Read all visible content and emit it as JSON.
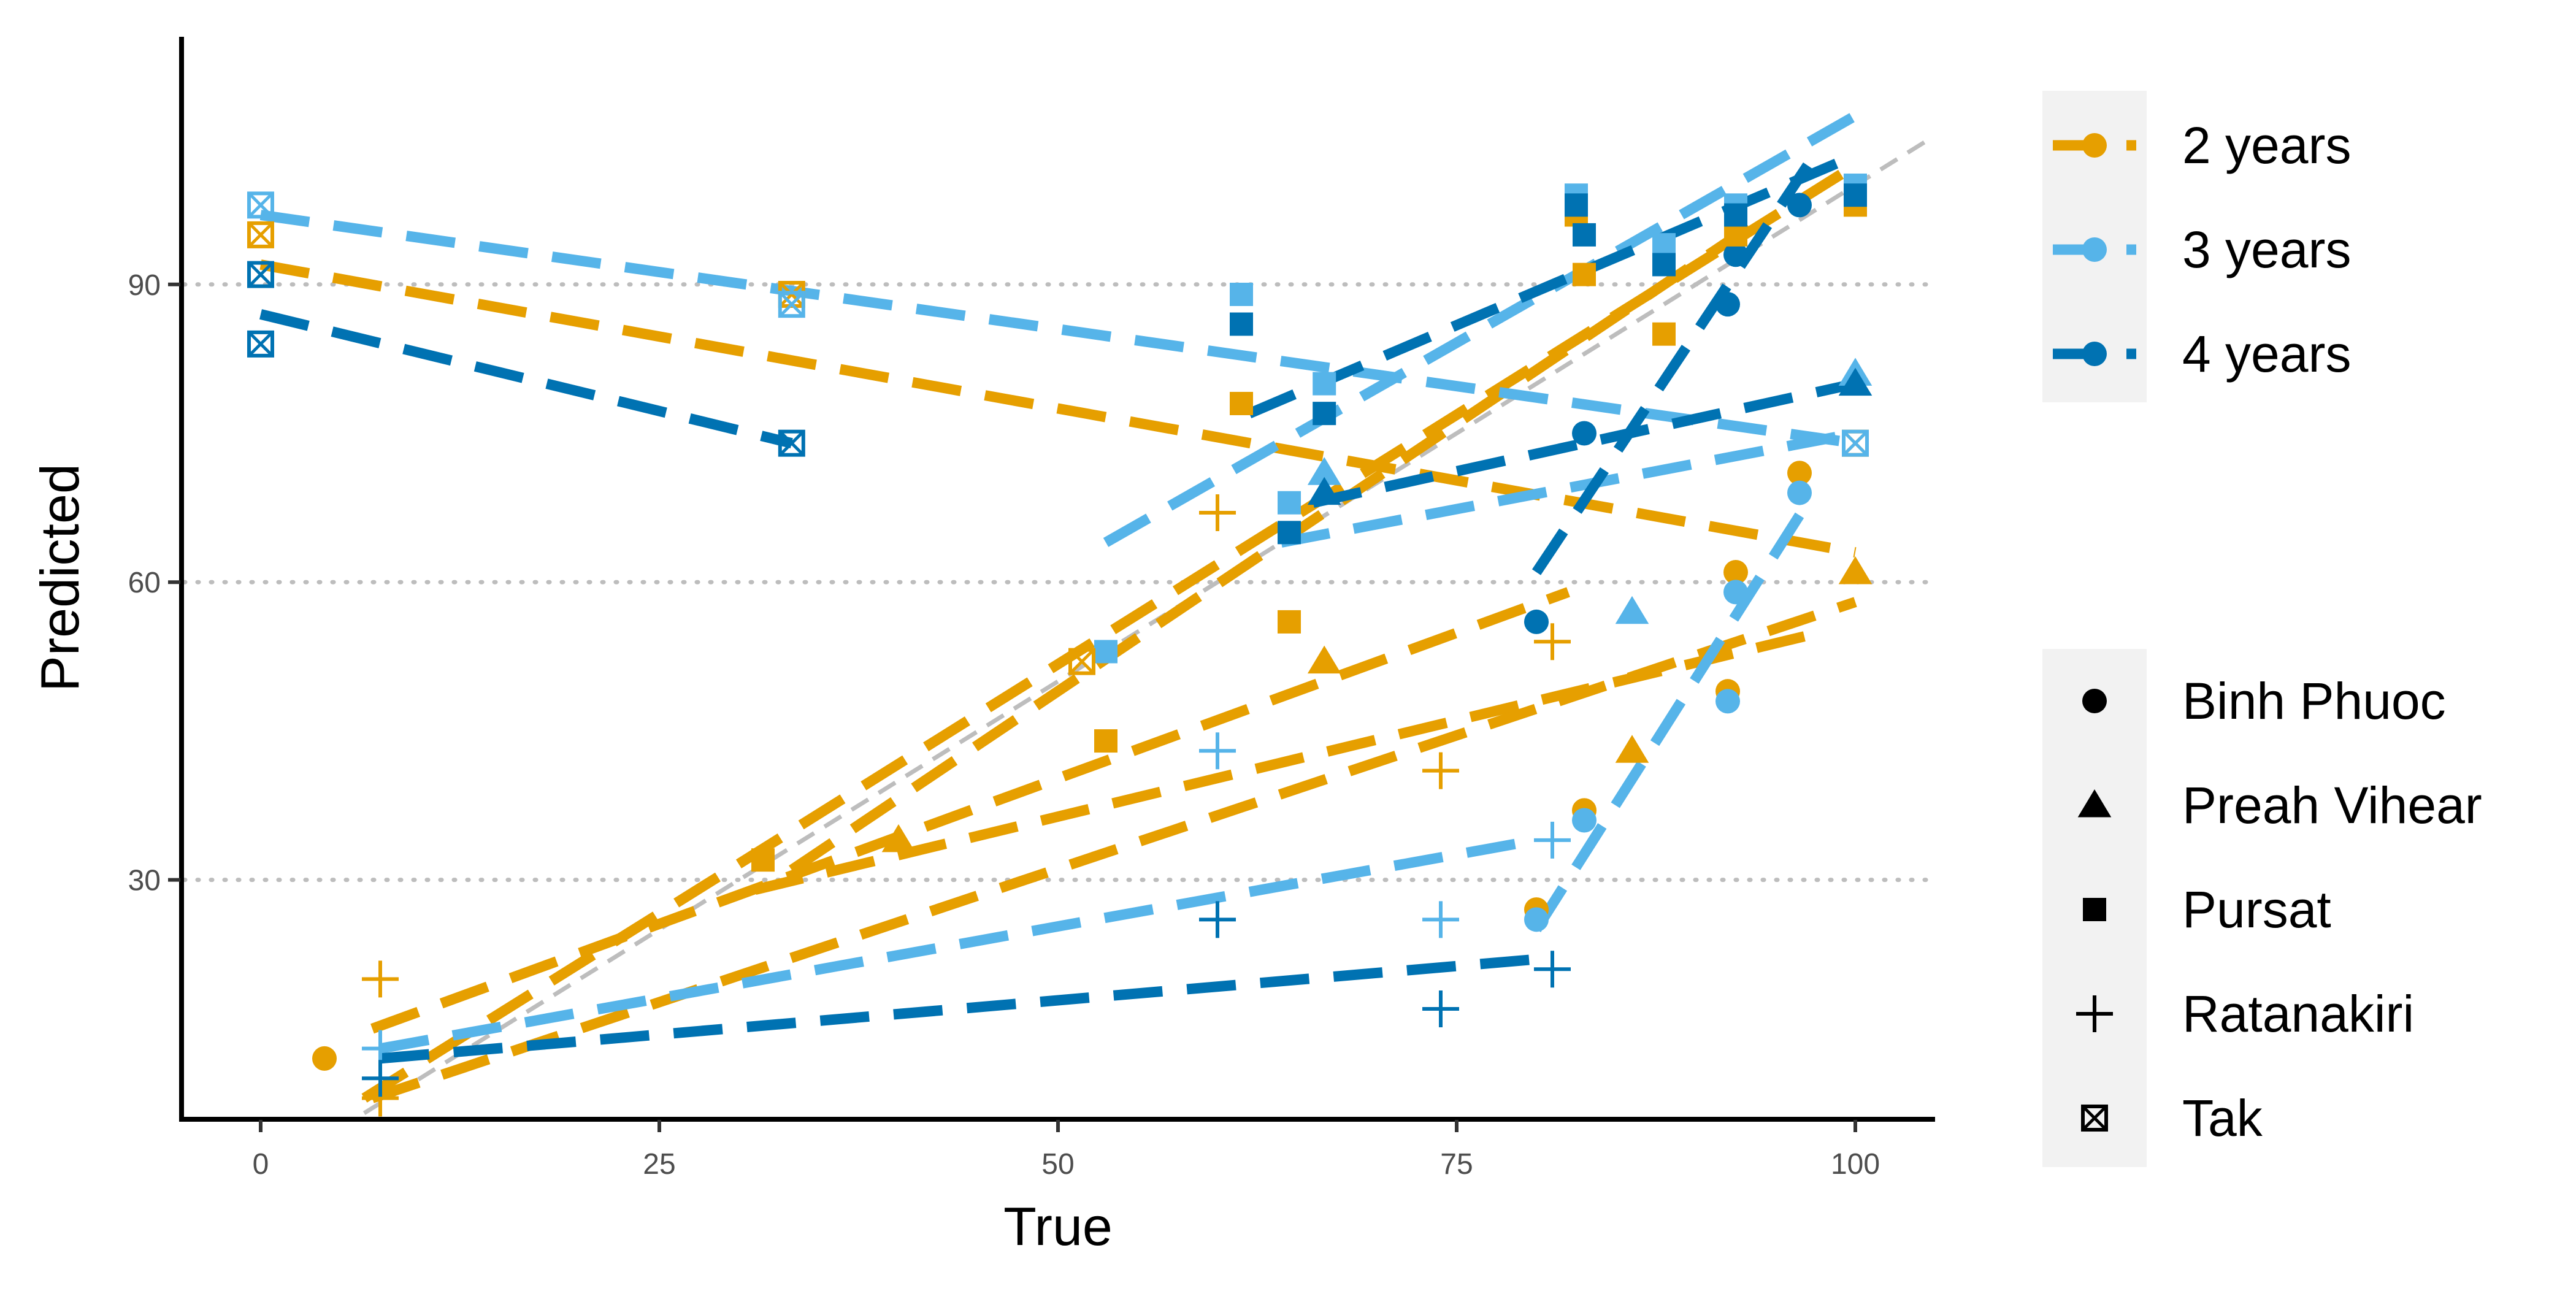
{
  "chart_data": {
    "type": "scatter",
    "xlabel": "True",
    "ylabel": "Predicted",
    "xlim": [
      -10.5,
      105
    ],
    "ylim": [
      1,
      110
    ],
    "xticks": [
      0,
      25,
      50,
      75,
      100
    ],
    "yticks": [
      30,
      60,
      90
    ],
    "grid": "horizontal dotted",
    "reference_line": {
      "style": "dashed",
      "color": "#BDBDBD",
      "x": [
        -2,
        105
      ],
      "y": [
        -2,
        105
      ]
    },
    "legend_years": {
      "position": "right-top",
      "entries": [
        {
          "label": "2 years",
          "color": "#E69F00"
        },
        {
          "label": "3 years",
          "color": "#56B4E9"
        },
        {
          "label": "4 years",
          "color": "#0072B2"
        }
      ]
    },
    "legend_sites": {
      "position": "right-bottom",
      "entries": [
        {
          "label": "Binh Phuoc",
          "shape": "circle"
        },
        {
          "label": "Preah Vihear",
          "shape": "triangle"
        },
        {
          "label": "Pursat",
          "shape": "square"
        },
        {
          "label": "Ratanakiri",
          "shape": "plus"
        },
        {
          "label": "Tak",
          "shape": "boxed-x"
        }
      ]
    },
    "lines": [
      {
        "color": "#E69F00",
        "x": [
          0,
          100
        ],
        "y": [
          92,
          63
        ]
      },
      {
        "color": "#E69F00",
        "x": [
          33.3,
          94.5
        ],
        "y": [
          31,
          97
        ]
      },
      {
        "color": "#E69F00",
        "x": [
          6.5,
          100
        ],
        "y": [
          8,
          102
        ]
      },
      {
        "color": "#E69F00",
        "x": [
          7,
          82
        ],
        "y": [
          15,
          59
        ]
      },
      {
        "color": "#E69F00",
        "x": [
          31,
          98
        ],
        "y": [
          29,
          55
        ]
      },
      {
        "color": "#E69F00",
        "x": [
          7,
          100
        ],
        "y": [
          8,
          58
        ]
      },
      {
        "color": "#56B4E9",
        "x": [
          0,
          100
        ],
        "y": [
          97,
          74
        ]
      },
      {
        "color": "#56B4E9",
        "x": [
          53,
          100
        ],
        "y": [
          64,
          107
        ]
      },
      {
        "color": "#56B4E9",
        "x": [
          64,
          100
        ],
        "y": [
          64,
          75
        ]
      },
      {
        "color": "#56B4E9",
        "x": [
          7.5,
          80
        ],
        "y": [
          13,
          34
        ]
      },
      {
        "color": "#56B4E9",
        "x": [
          80,
          97
        ],
        "y": [
          25,
          68
        ]
      },
      {
        "color": "#0072B2",
        "x": [
          0,
          33.3
        ],
        "y": [
          87,
          74
        ]
      },
      {
        "color": "#0072B2",
        "x": [
          62,
          100
        ],
        "y": [
          77,
          103
        ]
      },
      {
        "color": "#0072B2",
        "x": [
          66,
          100
        ],
        "y": [
          68,
          80
        ]
      },
      {
        "color": "#0072B2",
        "x": [
          80,
          97
        ],
        "y": [
          61,
          102
        ]
      },
      {
        "color": "#0072B2",
        "x": [
          7.5,
          80
        ],
        "y": [
          12,
          22
        ]
      }
    ],
    "points": [
      {
        "shape": "circle",
        "color": "#E69F00",
        "x": 4,
        "y": 12
      },
      {
        "shape": "circle",
        "color": "#E69F00",
        "x": 80,
        "y": 27
      },
      {
        "shape": "circle",
        "color": "#E69F00",
        "x": 83,
        "y": 37
      },
      {
        "shape": "circle",
        "color": "#E69F00",
        "x": 92,
        "y": 49
      },
      {
        "shape": "circle",
        "color": "#E69F00",
        "x": 92.5,
        "y": 61
      },
      {
        "shape": "circle",
        "color": "#E69F00",
        "x": 96.5,
        "y": 71
      },
      {
        "shape": "circle",
        "color": "#56B4E9",
        "x": 80,
        "y": 26
      },
      {
        "shape": "circle",
        "color": "#56B4E9",
        "x": 83,
        "y": 36
      },
      {
        "shape": "circle",
        "color": "#56B4E9",
        "x": 92,
        "y": 48
      },
      {
        "shape": "circle",
        "color": "#56B4E9",
        "x": 92.5,
        "y": 59
      },
      {
        "shape": "circle",
        "color": "#56B4E9",
        "x": 96.5,
        "y": 69
      },
      {
        "shape": "circle",
        "color": "#0072B2",
        "x": 80,
        "y": 56
      },
      {
        "shape": "circle",
        "color": "#0072B2",
        "x": 83,
        "y": 75
      },
      {
        "shape": "circle",
        "color": "#0072B2",
        "x": 92,
        "y": 88
      },
      {
        "shape": "circle",
        "color": "#0072B2",
        "x": 92.5,
        "y": 93
      },
      {
        "shape": "circle",
        "color": "#0072B2",
        "x": 96.5,
        "y": 98
      },
      {
        "shape": "triangle",
        "color": "#E69F00",
        "x": 40,
        "y": 34
      },
      {
        "shape": "triangle",
        "color": "#E69F00",
        "x": 66.7,
        "y": 52
      },
      {
        "shape": "triangle",
        "color": "#E69F00",
        "x": 86,
        "y": 43
      },
      {
        "shape": "triangle",
        "color": "#E69F00",
        "x": 100,
        "y": 61
      },
      {
        "shape": "triangle",
        "color": "#56B4E9",
        "x": 66.7,
        "y": 71
      },
      {
        "shape": "triangle",
        "color": "#56B4E9",
        "x": 86,
        "y": 57
      },
      {
        "shape": "triangle",
        "color": "#56B4E9",
        "x": 100,
        "y": 81
      },
      {
        "shape": "triangle",
        "color": "#0072B2",
        "x": 66.7,
        "y": 69
      },
      {
        "shape": "triangle",
        "color": "#0072B2",
        "x": 100,
        "y": 80
      },
      {
        "shape": "square",
        "color": "#E69F00",
        "x": 31.5,
        "y": 32
      },
      {
        "shape": "square",
        "color": "#E69F00",
        "x": 53,
        "y": 44
      },
      {
        "shape": "square",
        "color": "#E69F00",
        "x": 61.5,
        "y": 78
      },
      {
        "shape": "square",
        "color": "#E69F00",
        "x": 64.5,
        "y": 56
      },
      {
        "shape": "square",
        "color": "#E69F00",
        "x": 82.5,
        "y": 97
      },
      {
        "shape": "square",
        "color": "#E69F00",
        "x": 83,
        "y": 91
      },
      {
        "shape": "square",
        "color": "#E69F00",
        "x": 88,
        "y": 85
      },
      {
        "shape": "square",
        "color": "#E69F00",
        "x": 92.5,
        "y": 95
      },
      {
        "shape": "square",
        "color": "#E69F00",
        "x": 100,
        "y": 98
      },
      {
        "shape": "square",
        "color": "#56B4E9",
        "x": 53,
        "y": 53
      },
      {
        "shape": "square",
        "color": "#56B4E9",
        "x": 61.5,
        "y": 89
      },
      {
        "shape": "square",
        "color": "#56B4E9",
        "x": 64.5,
        "y": 68
      },
      {
        "shape": "square",
        "color": "#56B4E9",
        "x": 66.7,
        "y": 80
      },
      {
        "shape": "square",
        "color": "#56B4E9",
        "x": 82.5,
        "y": 99
      },
      {
        "shape": "square",
        "color": "#56B4E9",
        "x": 88,
        "y": 94
      },
      {
        "shape": "square",
        "color": "#56B4E9",
        "x": 92.5,
        "y": 98
      },
      {
        "shape": "square",
        "color": "#56B4E9",
        "x": 100,
        "y": 100
      },
      {
        "shape": "square",
        "color": "#0072B2",
        "x": 61.5,
        "y": 86
      },
      {
        "shape": "square",
        "color": "#0072B2",
        "x": 64.5,
        "y": 65
      },
      {
        "shape": "square",
        "color": "#0072B2",
        "x": 66.7,
        "y": 77
      },
      {
        "shape": "square",
        "color": "#0072B2",
        "x": 82.5,
        "y": 98
      },
      {
        "shape": "square",
        "color": "#0072B2",
        "x": 83,
        "y": 95
      },
      {
        "shape": "square",
        "color": "#0072B2",
        "x": 88,
        "y": 92
      },
      {
        "shape": "square",
        "color": "#0072B2",
        "x": 92.5,
        "y": 97
      },
      {
        "shape": "square",
        "color": "#0072B2",
        "x": 100,
        "y": 99
      },
      {
        "shape": "plus",
        "color": "#E69F00",
        "x": 7.5,
        "y": 20
      },
      {
        "shape": "plus",
        "color": "#E69F00",
        "x": 7.5,
        "y": 8
      },
      {
        "shape": "plus",
        "color": "#E69F00",
        "x": 60,
        "y": 67
      },
      {
        "shape": "plus",
        "color": "#E69F00",
        "x": 74,
        "y": 41
      },
      {
        "shape": "plus",
        "color": "#E69F00",
        "x": 81,
        "y": 54
      },
      {
        "shape": "plus",
        "color": "#56B4E9",
        "x": 7.5,
        "y": 13
      },
      {
        "shape": "plus",
        "color": "#56B4E9",
        "x": 60,
        "y": 43
      },
      {
        "shape": "plus",
        "color": "#56B4E9",
        "x": 74,
        "y": 26
      },
      {
        "shape": "plus",
        "color": "#56B4E9",
        "x": 81,
        "y": 34
      },
      {
        "shape": "plus",
        "color": "#0072B2",
        "x": 7.5,
        "y": 10
      },
      {
        "shape": "plus",
        "color": "#0072B2",
        "x": 60,
        "y": 26
      },
      {
        "shape": "plus",
        "color": "#0072B2",
        "x": 74,
        "y": 17
      },
      {
        "shape": "plus",
        "color": "#0072B2",
        "x": 81,
        "y": 21
      },
      {
        "shape": "boxed-x",
        "color": "#E69F00",
        "x": 0,
        "y": 95
      },
      {
        "shape": "boxed-x",
        "color": "#E69F00",
        "x": 33.3,
        "y": 89
      },
      {
        "shape": "boxed-x",
        "color": "#E69F00",
        "x": 51.5,
        "y": 52
      },
      {
        "shape": "boxed-x",
        "color": "#E69F00",
        "x": 100,
        "y": 74
      },
      {
        "shape": "boxed-x",
        "color": "#56B4E9",
        "x": 0,
        "y": 98
      },
      {
        "shape": "boxed-x",
        "color": "#56B4E9",
        "x": 33.3,
        "y": 88
      },
      {
        "shape": "boxed-x",
        "color": "#56B4E9",
        "x": 100,
        "y": 74
      },
      {
        "shape": "boxed-x",
        "color": "#0072B2",
        "x": 0,
        "y": 91
      },
      {
        "shape": "boxed-x",
        "color": "#0072B2",
        "x": 0,
        "y": 84
      },
      {
        "shape": "boxed-x",
        "color": "#0072B2",
        "x": 33.3,
        "y": 74
      }
    ]
  }
}
